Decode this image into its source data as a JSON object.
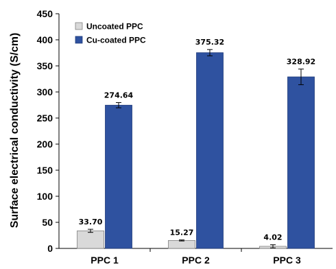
{
  "chart_data": {
    "type": "bar",
    "ylabel": "Surface electrical conductivity (S/cm)",
    "xlabel": "",
    "categories": [
      "PPC 1",
      "PPC 2",
      "PPC 3"
    ],
    "ylim": [
      0,
      450
    ],
    "yticks": [
      0,
      50,
      100,
      150,
      200,
      250,
      300,
      350,
      400,
      450
    ],
    "grid": false,
    "legend_position": "top-left",
    "series": [
      {
        "name": "Uncoated PPC",
        "color": "#d9d9d9",
        "values": [
          33.7,
          15.27,
          4.02
        ],
        "labels": [
          "33.70",
          "15.27",
          "4.02"
        ],
        "errors": [
          3,
          1,
          3
        ]
      },
      {
        "name": "Cu-coated PPC",
        "color": "#2f52a0",
        "values": [
          274.64,
          375.32,
          328.92
        ],
        "labels": [
          "274.64",
          "375.32",
          "328.92"
        ],
        "errors": [
          5,
          6,
          15
        ]
      }
    ]
  }
}
